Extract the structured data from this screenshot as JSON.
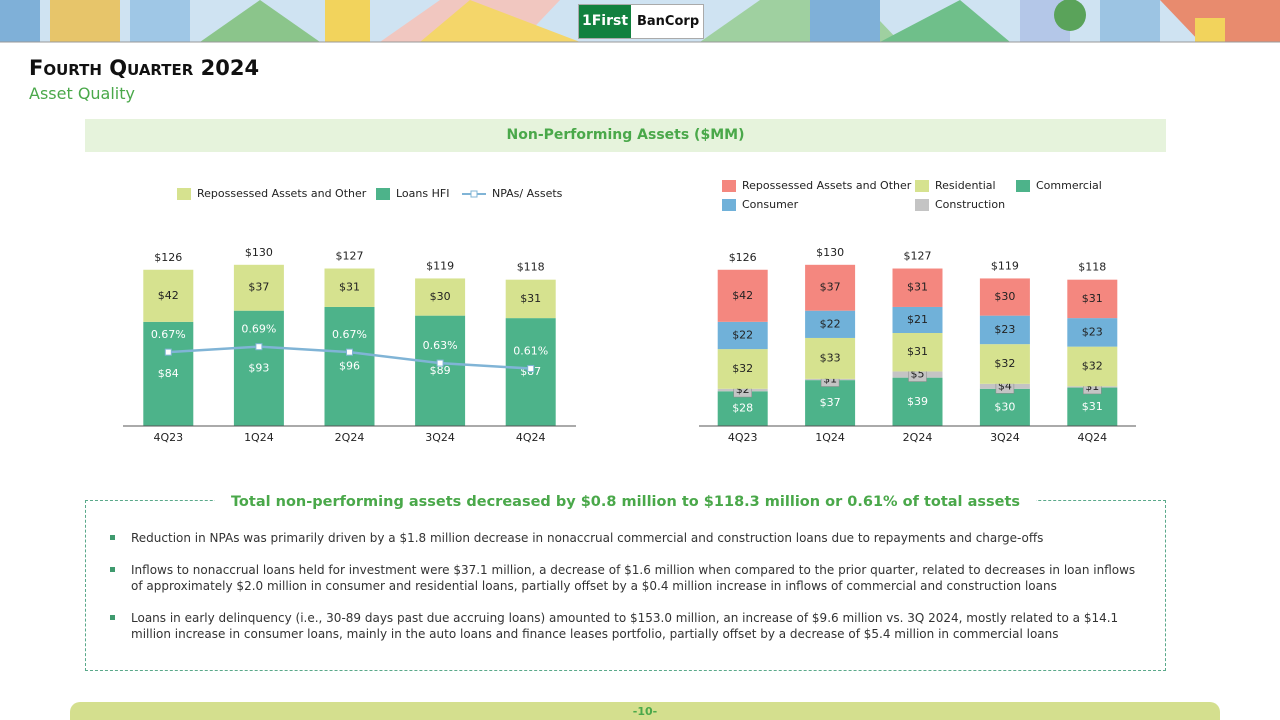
{
  "logo": {
    "mark": "1",
    "name": "First",
    "suffix": "BanCorp"
  },
  "header": {
    "title": "Fourth Quarter 2024",
    "subtitle": "Asset Quality"
  },
  "banner": "Non-Performing Assets ($MM)",
  "chart_data": [
    {
      "type": "bar",
      "stacked": true,
      "categories": [
        "4Q23",
        "1Q24",
        "2Q24",
        "3Q24",
        "4Q24"
      ],
      "series": [
        {
          "name": "Loans HFI",
          "color": "#4db38a",
          "values": [
            84,
            93,
            96,
            89,
            87
          ],
          "value_labels": [
            "$84",
            "$93",
            "$96",
            "$89",
            "$87"
          ]
        },
        {
          "name": "Repossessed Assets and Other",
          "color": "#d6e28f",
          "values": [
            42,
            37,
            31,
            30,
            31
          ],
          "value_labels": [
            "$42",
            "$37",
            "$31",
            "$30",
            "$31"
          ]
        },
        {
          "name": "NPAs/ Assets",
          "type": "line",
          "axis": "y2",
          "color": "#80b4d6",
          "values": [
            0.67,
            0.69,
            0.67,
            0.63,
            0.61
          ],
          "value_labels": [
            "0.67%",
            "0.69%",
            "0.67%",
            "0.63%",
            "0.61%"
          ]
        }
      ],
      "totals": [
        126,
        130,
        127,
        119,
        118
      ],
      "total_labels": [
        "$126",
        "$130",
        "$127",
        "$119",
        "$118"
      ],
      "ylim": [
        0,
        150
      ],
      "y2lim": [
        0.4,
        1.08
      ]
    },
    {
      "type": "bar",
      "stacked": true,
      "categories": [
        "4Q23",
        "1Q24",
        "2Q24",
        "3Q24",
        "4Q24"
      ],
      "series": [
        {
          "name": "Commercial",
          "color": "#4db38a",
          "values": [
            28,
            37,
            39,
            30,
            31
          ],
          "value_labels": [
            "$28",
            "$37",
            "$39",
            "$30",
            "$31"
          ]
        },
        {
          "name": "Construction",
          "color": "#c4c4c4",
          "values": [
            2,
            1,
            5,
            4,
            1
          ],
          "value_labels": [
            "$2",
            "$1",
            "$5",
            "$4",
            "$1"
          ]
        },
        {
          "name": "Residential",
          "color": "#d6e28f",
          "values": [
            32,
            33,
            31,
            32,
            32
          ],
          "value_labels": [
            "$32",
            "$33",
            "$31",
            "$32",
            "$32"
          ]
        },
        {
          "name": "Consumer",
          "color": "#70b1d9",
          "values": [
            22,
            22,
            21,
            23,
            23
          ],
          "value_labels": [
            "$22",
            "$22",
            "$21",
            "$23",
            "$23"
          ]
        },
        {
          "name": "Repossessed Assets and Other",
          "color": "#f4877f",
          "values": [
            42,
            37,
            31,
            30,
            31
          ],
          "value_labels": [
            "$42",
            "$37",
            "$31",
            "$30",
            "$31"
          ]
        }
      ],
      "totals": [
        126,
        130,
        127,
        119,
        118
      ],
      "total_labels": [
        "$126",
        "$130",
        "$127",
        "$119",
        "$118"
      ],
      "ylim": [
        0,
        150
      ]
    }
  ],
  "summary": {
    "title": "Total non-performing assets decreased by $0.8 million to $118.3 million or 0.61% of total assets",
    "bullets": [
      "Reduction in NPAs was primarily driven by a $1.8 million decrease in nonaccrual commercial and construction loans due to repayments and charge-offs",
      "Inflows to nonaccrual loans held for investment were $37.1 million, a decrease of $1.6 million when compared to the prior quarter, related to decreases in loan inflows of approximately $2.0 million in consumer and residential loans, partially offset by a $0.4 million increase in inflows of commercial and construction loans",
      "Loans in early delinquency (i.e., 30-89 days past due accruing loans) amounted to $153.0 million, an increase of $9.6 million vs. 3Q 2024, mostly related to a $14.1 million increase in consumer loans, mainly in the auto loans and finance leases portfolio, partially offset by a decrease of $5.4 million in commercial loans"
    ]
  },
  "footer": "-10-"
}
